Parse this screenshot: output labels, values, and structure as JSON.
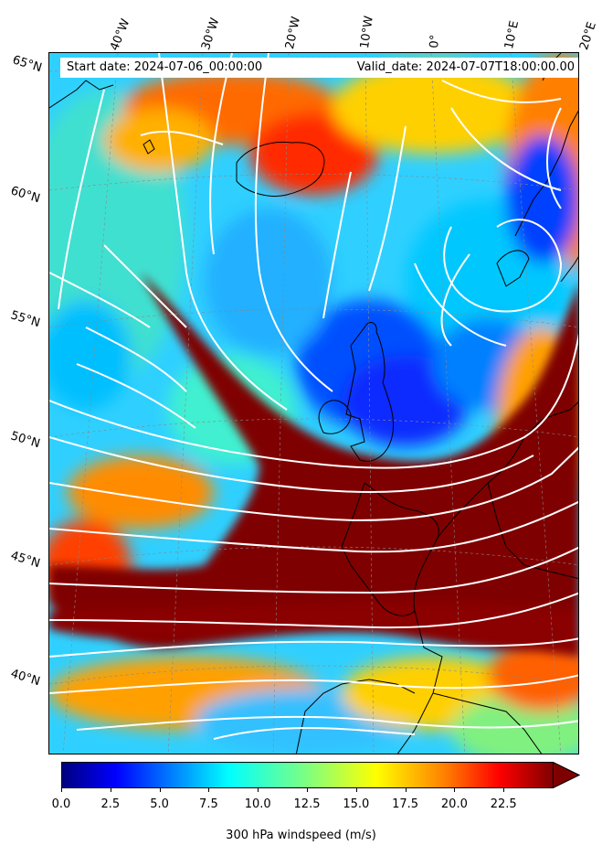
{
  "banner": {
    "start_date": "Start date: 2024-07-06_00:00:00",
    "valid_date": "Valid_date: 2024-07-07T18:00:00.00"
  },
  "longitude_labels": [
    "40°W",
    "30°W",
    "20°W",
    "10°W",
    "0°",
    "10°E",
    "20°E"
  ],
  "latitude_labels": [
    "65°N",
    "60°N",
    "55°N",
    "50°N",
    "45°N",
    "40°N"
  ],
  "colorbar": {
    "label": "300 hPa windspeed (m/s)",
    "ticks": [
      "0.0",
      "2.5",
      "5.0",
      "7.5",
      "10.0",
      "12.5",
      "15.0",
      "17.5",
      "20.0",
      "22.5"
    ],
    "min": 0,
    "max": 25,
    "extend": "max",
    "colormap": "jet",
    "colors": [
      "#00007f",
      "#0000ff",
      "#007fff",
      "#00ffff",
      "#7fff7f",
      "#ffff00",
      "#ff7f00",
      "#ff0000",
      "#7f0000"
    ]
  },
  "map": {
    "field": "300 hPa windspeed",
    "overlay": "streamlines",
    "coastline_color": "#000000",
    "streamline_color": "#ffffff",
    "grid": true
  }
}
